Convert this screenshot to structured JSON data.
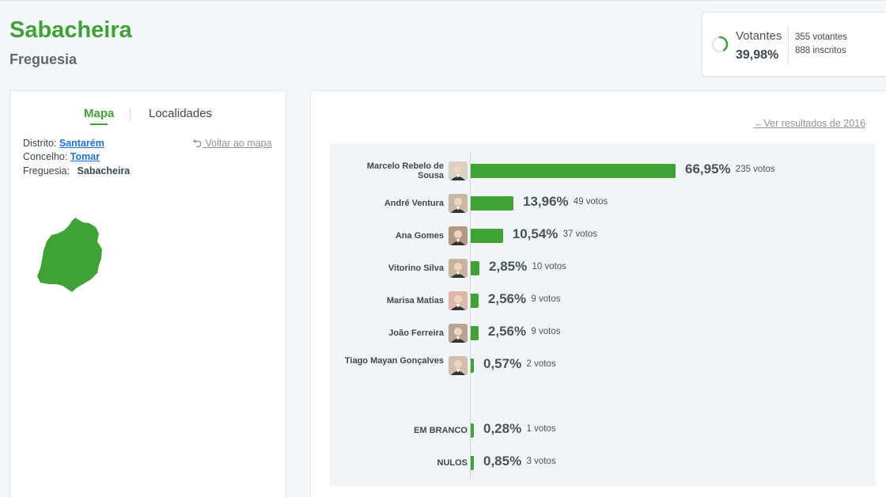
{
  "header": {
    "title": "Sabacheira",
    "subtitle": "Freguesia"
  },
  "turnout": {
    "label": "Votantes",
    "percent": "39,98%",
    "voters": "355 votantes",
    "registered": "888 inscritos",
    "fraction": 0.3998,
    "accent": "#3ea234"
  },
  "tabs": {
    "map": "Mapa",
    "localities": "Localidades"
  },
  "location": {
    "district_label": "Distrito:",
    "district": "Santarém",
    "council_label": "Concelho:",
    "council": "Tomar",
    "parish_label": "Freguesia:",
    "parish": "Sabacheira",
    "back_link": "Voltar ao mapa"
  },
  "results": {
    "previous_link": "Ver resultados de 2016",
    "bar_color": "#3ea234",
    "rows": [
      {
        "name": "Marcelo Rebelo de Sousa",
        "pct": "66,95%",
        "value": 66.95,
        "votes": "235 votos"
      },
      {
        "name": "André Ventura",
        "pct": "13,96%",
        "value": 13.96,
        "votes": "49 votos"
      },
      {
        "name": "Ana Gomes",
        "pct": "10,54%",
        "value": 10.54,
        "votes": "37 votos"
      },
      {
        "name": "Vitorino Silva",
        "pct": "2,85%",
        "value": 2.85,
        "votes": "10 votos"
      },
      {
        "name": "Marisa Matias",
        "pct": "2,56%",
        "value": 2.56,
        "votes": "9 votos"
      },
      {
        "name": "João Ferreira",
        "pct": "2,56%",
        "value": 2.56,
        "votes": "9 votos"
      },
      {
        "name": "Tiago Mayan Gonçalves",
        "pct": "0,57%",
        "value": 0.57,
        "votes": "2 votos"
      },
      {
        "name": "EM BRANCO",
        "pct": "0,28%",
        "value": 0.28,
        "votes": "1 votos"
      },
      {
        "name": "NULOS",
        "pct": "0,85%",
        "value": 0.85,
        "votes": "3 votos"
      }
    ]
  }
}
